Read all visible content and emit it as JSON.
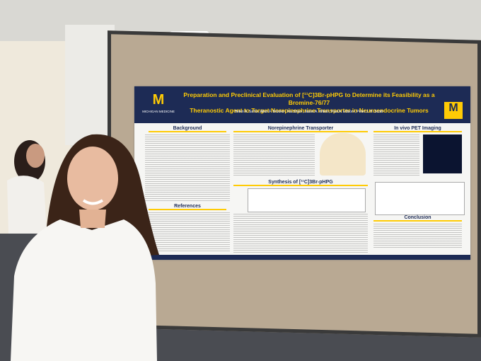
{
  "poster": {
    "logo": "MICHIGAN MEDICINE",
    "title_line1": "Preparation and Preclinical Evaluation of [¹¹C]3Br-pHPG to Determine its Feasibility as a Bromine-76/77",
    "title_line2": "Theranostic Agent to Target Norepinephrine Transporter in Neuroendocrine Tumors",
    "authors": "Helen A. SaTu¹, Allen F. Brooks¹, Xia Shao¹, Jason A. Witek¹, Paul A. Ellison², Peter J. H. Scott¹",
    "sections": [
      "Background",
      "Norepinephrine Transporter",
      "In vivo PET Imaging",
      "Synthesis of [¹¹C]3Br-pHPG",
      "References",
      "Conclusion"
    ]
  }
}
